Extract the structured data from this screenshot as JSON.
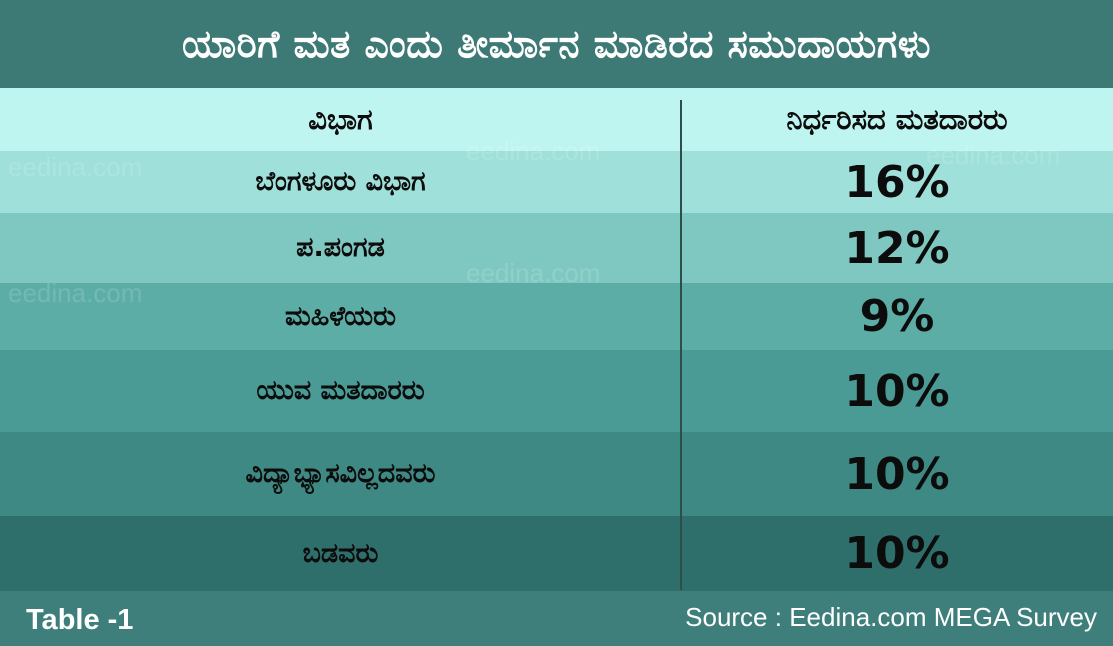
{
  "title": "ಯಾರಿಗೆ ಮತ ಎಂದು ತೀರ್ಮಾನ ಮಾಡಿರದ ಸಮುದಾಯಗಳು",
  "footer": {
    "table_label": "Table -1",
    "source": "Source : Eedina.com MEGA Survey"
  },
  "watermark": "eedina.com",
  "chart_data": {
    "type": "table",
    "columns": [
      "ವಿಭಾಗ",
      "ನಿರ್ಧರಿಸದ ಮತದಾರರು"
    ],
    "rows": [
      {
        "label": "ಬೆಂಗಳೂರು ವಿಭಾಗ",
        "value": 16,
        "display": "16%"
      },
      {
        "label": "ಪ.ಪಂಗಡ",
        "value": 12,
        "display": "12%"
      },
      {
        "label": "ಮಹಿಳೆಯರು",
        "value": 9,
        "display": "9%"
      },
      {
        "label": "ಯುವ ಮತದಾರರು",
        "value": 10,
        "display": "10%"
      },
      {
        "label": "ವಿದ್ಯಾಭ್ಯಾಸವಿಲ್ಲದವರು",
        "value": 10,
        "display": "10%"
      },
      {
        "label": "ಬಡವರು",
        "value": 10,
        "display": "10%"
      }
    ],
    "colors": {
      "header_row": "#bff5f1",
      "row_backgrounds": [
        "#9fe0da",
        "#7fc8c2",
        "#5dada7",
        "#4a9b95",
        "#3e8984",
        "#2f6f6b"
      ]
    }
  }
}
